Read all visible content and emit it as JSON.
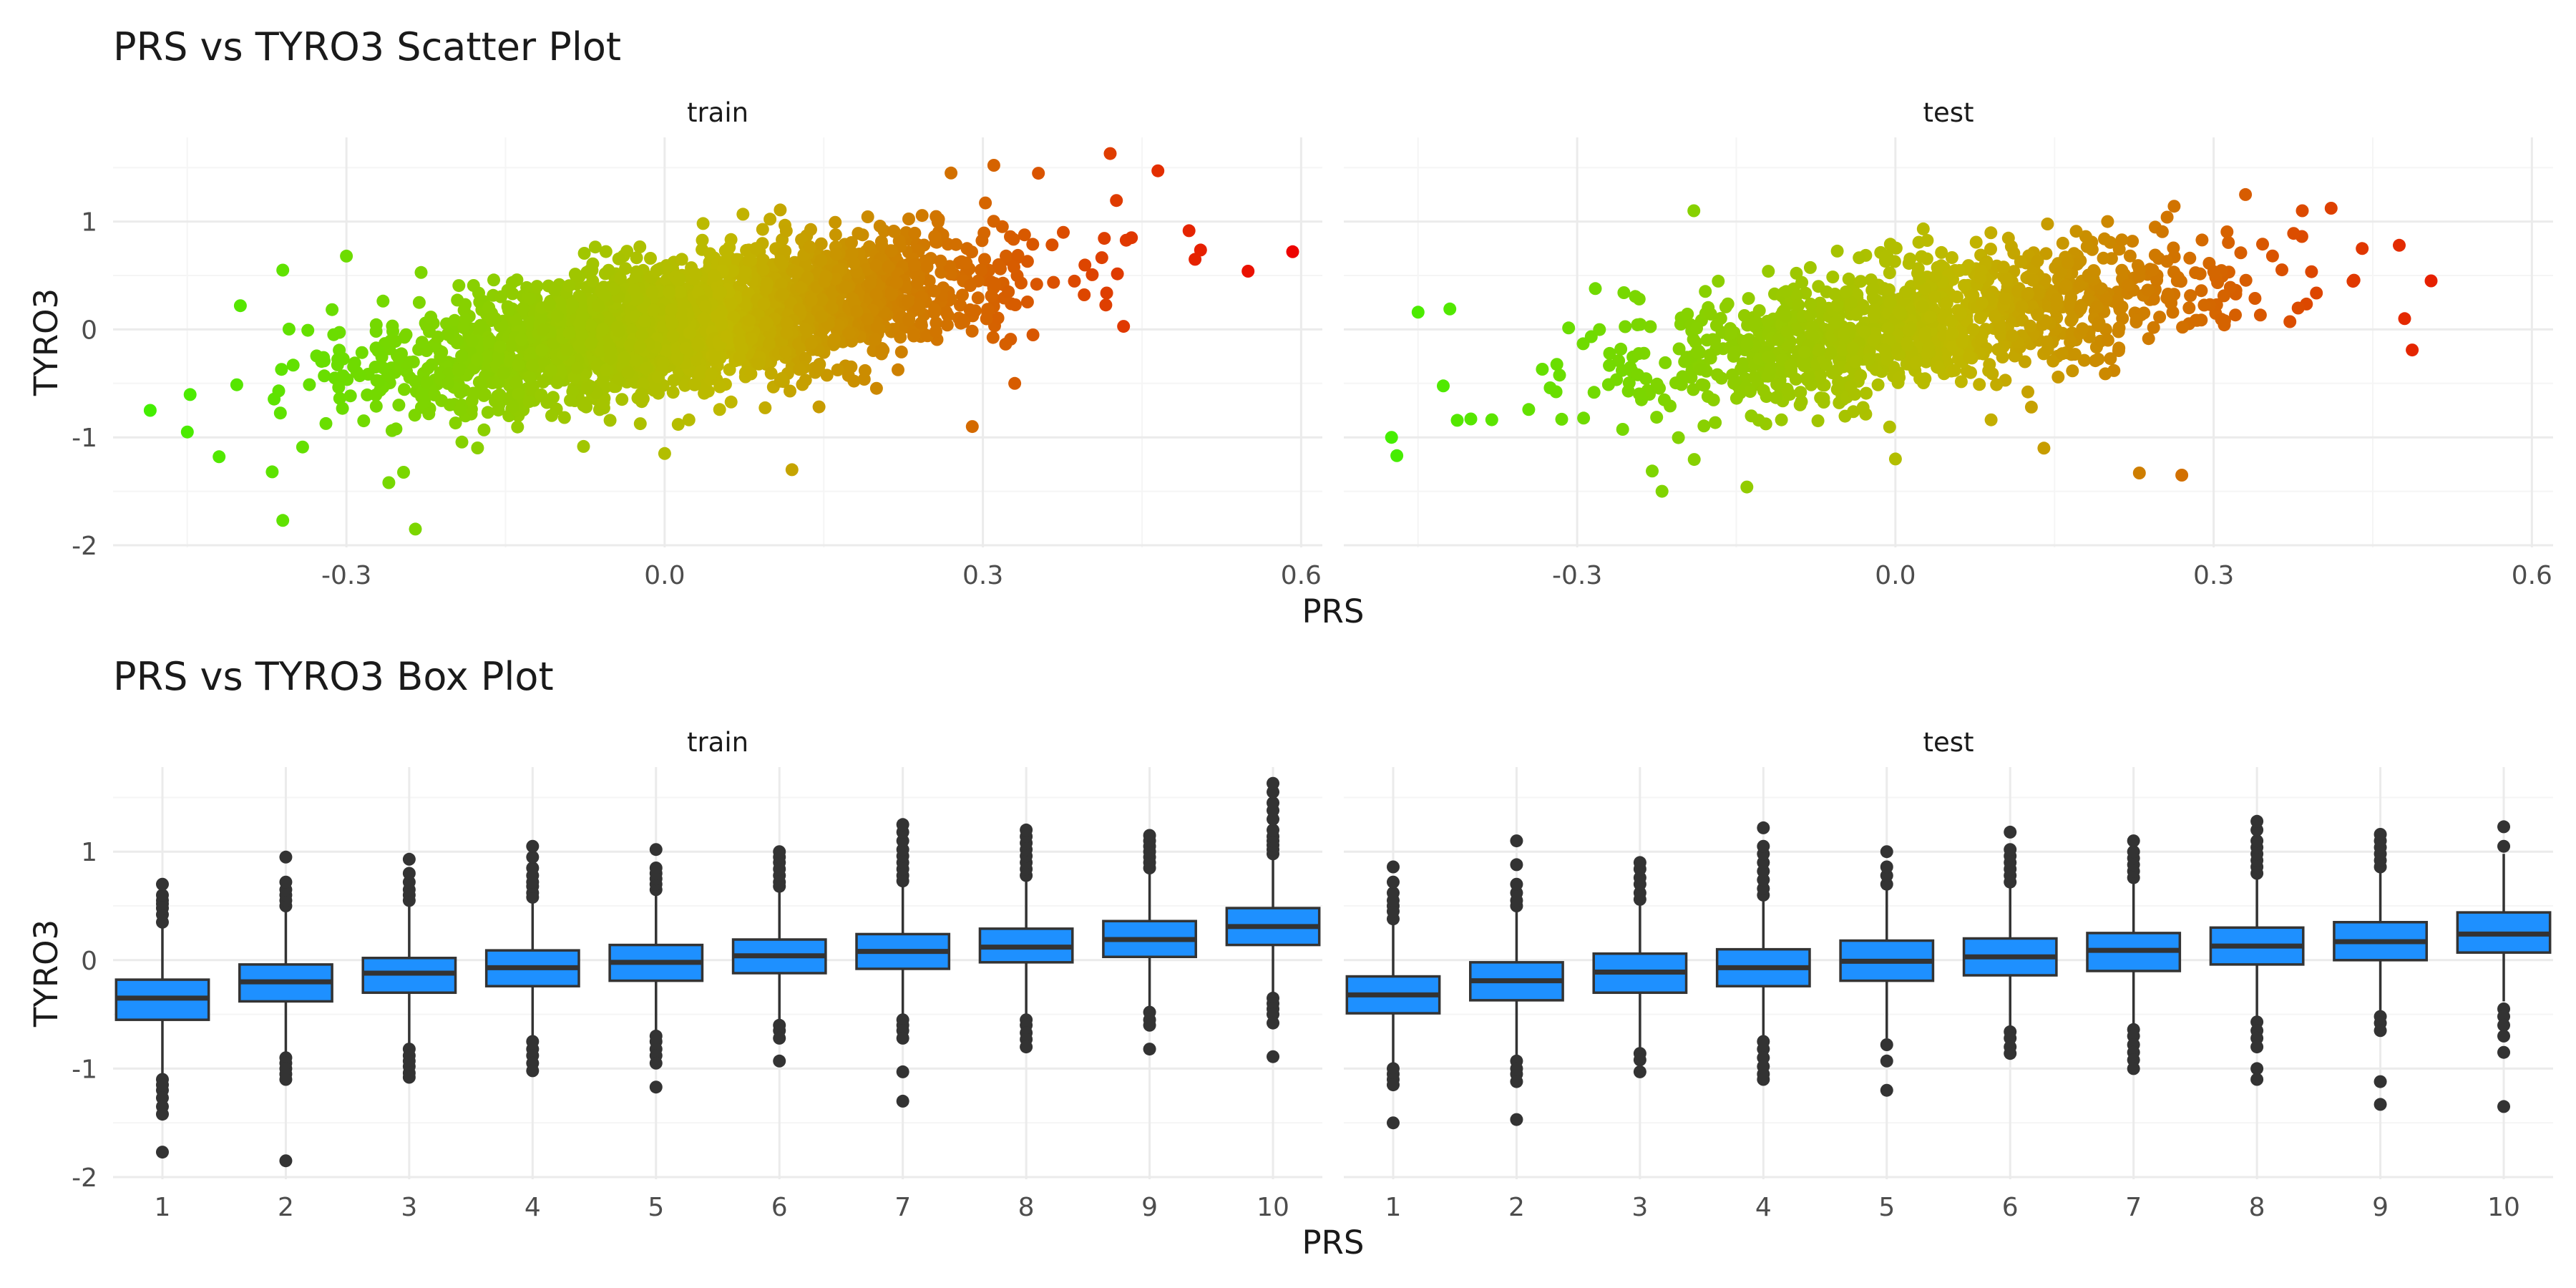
{
  "colors": {
    "grid_major": "#ebebeb",
    "grid_minor": "#f5f5f5",
    "box_fill": "#1e90ff",
    "box_stroke": "#333333",
    "point_low": "#44ee00",
    "point_mid": "#c0b800",
    "point_high": "#ee0000"
  },
  "chart_data": [
    {
      "type": "scatter",
      "title": "PRS vs TYRO3 Scatter Plot",
      "xlabel": "PRS",
      "ylabel": "TYRO3",
      "xlim": [
        -0.52,
        0.62
      ],
      "ylim": [
        -2.02,
        1.78
      ],
      "x_ticks": [
        -0.3,
        0.0,
        0.3,
        0.6
      ],
      "x_tick_labels": [
        "-0.3",
        "0.0",
        "0.3",
        "0.6"
      ],
      "y_ticks": [
        -2,
        -1,
        0,
        1
      ],
      "y_tick_labels": [
        "-2",
        "-1",
        "0",
        "1"
      ],
      "color_scale": "gradient by PRS: green (low) to red (high)",
      "grid": true,
      "legend": "none",
      "series": [
        {
          "name": "train",
          "trend": {
            "slope": 1.5,
            "intercept": 0.02,
            "residual_sd": 0.3
          },
          "x_range": [
            -0.46,
            0.52
          ],
          "n_points": 2600,
          "outliers": [
            {
              "x": 0.592,
              "y": 0.72
            },
            {
              "x": 0.55,
              "y": 0.54
            },
            {
              "x": 0.42,
              "y": 1.63
            },
            {
              "x": 0.465,
              "y": 1.47
            },
            {
              "x": 0.5,
              "y": 0.65
            },
            {
              "x": 0.44,
              "y": 0.85
            },
            {
              "x": -0.485,
              "y": -0.75
            },
            {
              "x": -0.45,
              "y": -0.95
            },
            {
              "x": -0.42,
              "y": -1.18
            },
            {
              "x": -0.37,
              "y": -1.32
            },
            {
              "x": -0.36,
              "y": 0.55
            },
            {
              "x": -0.3,
              "y": 0.68
            },
            {
              "x": -0.36,
              "y": -1.77
            },
            {
              "x": -0.235,
              "y": -1.85
            },
            {
              "x": -0.26,
              "y": -1.42
            },
            {
              "x": 0.12,
              "y": -1.3
            },
            {
              "x": 0.29,
              "y": -0.9
            },
            {
              "x": 0.27,
              "y": 1.45
            },
            {
              "x": -0.4,
              "y": 0.22
            },
            {
              "x": 0.0,
              "y": -1.15
            },
            {
              "x": 0.33,
              "y": -0.5
            }
          ]
        },
        {
          "name": "test",
          "trend": {
            "slope": 1.45,
            "intercept": 0.02,
            "residual_sd": 0.3
          },
          "x_range": [
            -0.45,
            0.5
          ],
          "n_points": 1200,
          "outliers": [
            {
              "x": 0.505,
              "y": 0.45
            },
            {
              "x": 0.475,
              "y": 0.78
            },
            {
              "x": 0.44,
              "y": 0.75
            },
            {
              "x": 0.48,
              "y": 0.1
            },
            {
              "x": -0.475,
              "y": -1.0
            },
            {
              "x": -0.47,
              "y": -1.17
            },
            {
              "x": -0.45,
              "y": 0.16
            },
            {
              "x": -0.42,
              "y": 0.19
            },
            {
              "x": -0.22,
              "y": -1.5
            },
            {
              "x": -0.14,
              "y": -1.46
            },
            {
              "x": -0.19,
              "y": 1.1
            },
            {
              "x": 0.0,
              "y": -1.2
            },
            {
              "x": 0.27,
              "y": -1.35
            },
            {
              "x": 0.23,
              "y": -1.33
            },
            {
              "x": 0.33,
              "y": 1.25
            },
            {
              "x": 0.2,
              "y": 1.0
            },
            {
              "x": 0.14,
              "y": -1.1
            }
          ]
        }
      ]
    },
    {
      "type": "box",
      "title": "PRS vs TYRO3 Box Plot",
      "xlabel": "PRS",
      "ylabel": "TYRO3",
      "categories": [
        "1",
        "2",
        "3",
        "4",
        "5",
        "6",
        "7",
        "8",
        "9",
        "10"
      ],
      "ylim": [
        -2.02,
        1.78
      ],
      "y_ticks": [
        -2,
        -1,
        0,
        1
      ],
      "y_tick_labels": [
        "-2",
        "-1",
        "0",
        "1"
      ],
      "grid": true,
      "legend": "none",
      "series": [
        {
          "name": "train",
          "boxes": [
            {
              "q1": -0.55,
              "median": -0.35,
              "q3": -0.18,
              "whisker_low": -1.05,
              "whisker_high": 0.3,
              "outliers": [
                0.35,
                0.42,
                0.48,
                0.52,
                0.55,
                0.6,
                0.7,
                -1.1,
                -1.15,
                -1.2,
                -1.27,
                -1.35,
                -1.42,
                -1.77
              ]
            },
            {
              "q1": -0.38,
              "median": -0.2,
              "q3": -0.04,
              "whisker_low": -0.88,
              "whisker_high": 0.45,
              "outliers": [
                0.5,
                0.55,
                0.6,
                0.65,
                0.72,
                0.95,
                -0.9,
                -0.95,
                -1.0,
                -1.05,
                -1.1,
                -1.85
              ]
            },
            {
              "q1": -0.3,
              "median": -0.12,
              "q3": 0.02,
              "whisker_low": -0.78,
              "whisker_high": 0.52,
              "outliers": [
                0.55,
                0.6,
                0.65,
                0.72,
                0.8,
                0.93,
                -0.82,
                -0.88,
                -0.93,
                -0.98,
                -1.04,
                -1.08
              ]
            },
            {
              "q1": -0.24,
              "median": -0.07,
              "q3": 0.09,
              "whisker_low": -0.72,
              "whisker_high": 0.55,
              "outliers": [
                0.58,
                0.62,
                0.68,
                0.72,
                0.78,
                0.85,
                0.95,
                1.05,
                -0.75,
                -0.82,
                -0.88,
                -0.95,
                -1.02
              ]
            },
            {
              "q1": -0.19,
              "median": -0.02,
              "q3": 0.14,
              "whisker_low": -0.65,
              "whisker_high": 0.62,
              "outliers": [
                0.65,
                0.7,
                0.75,
                0.8,
                0.85,
                1.02,
                -0.7,
                -0.75,
                -0.82,
                -0.88,
                -0.95,
                -1.17
              ]
            },
            {
              "q1": -0.12,
              "median": 0.04,
              "q3": 0.19,
              "whisker_low": -0.58,
              "whisker_high": 0.65,
              "outliers": [
                0.68,
                0.72,
                0.78,
                0.84,
                0.9,
                0.95,
                1.0,
                -0.6,
                -0.65,
                -0.72,
                -0.93
              ]
            },
            {
              "q1": -0.08,
              "median": 0.08,
              "q3": 0.24,
              "whisker_low": -0.52,
              "whisker_high": 0.7,
              "outliers": [
                0.73,
                0.78,
                0.84,
                0.9,
                0.96,
                1.02,
                1.1,
                1.18,
                1.25,
                -0.55,
                -0.6,
                -0.65,
                -0.72,
                -1.03,
                -1.3
              ]
            },
            {
              "q1": -0.02,
              "median": 0.12,
              "q3": 0.29,
              "whisker_low": -0.5,
              "whisker_high": 0.75,
              "outliers": [
                0.78,
                0.84,
                0.9,
                0.96,
                1.02,
                1.08,
                1.14,
                1.2,
                -0.55,
                -0.6,
                -0.67,
                -0.73,
                -0.8
              ]
            },
            {
              "q1": 0.03,
              "median": 0.19,
              "q3": 0.36,
              "whisker_low": -0.45,
              "whisker_high": 0.82,
              "outliers": [
                0.85,
                0.9,
                0.95,
                1.0,
                1.05,
                1.1,
                1.15,
                -0.48,
                -0.55,
                -0.6,
                -0.82
              ]
            },
            {
              "q1": 0.14,
              "median": 0.31,
              "q3": 0.48,
              "whisker_low": -0.3,
              "whisker_high": 0.95,
              "outliers": [
                0.98,
                1.02,
                1.06,
                1.1,
                1.14,
                1.2,
                1.3,
                1.38,
                1.45,
                1.55,
                1.63,
                -0.35,
                -0.4,
                -0.45,
                -0.5,
                -0.58,
                -0.89
              ]
            }
          ]
        },
        {
          "name": "test",
          "boxes": [
            {
              "q1": -0.49,
              "median": -0.32,
              "q3": -0.15,
              "whisker_low": -0.98,
              "whisker_high": 0.33,
              "outliers": [
                0.38,
                0.45,
                0.5,
                0.55,
                0.62,
                0.72,
                0.86,
                -1.0,
                -1.05,
                -1.1,
                -1.15,
                -1.5
              ]
            },
            {
              "q1": -0.37,
              "median": -0.19,
              "q3": -0.02,
              "whisker_low": -0.88,
              "whisker_high": 0.45,
              "outliers": [
                0.5,
                0.55,
                0.62,
                0.7,
                0.88,
                1.1,
                -0.93,
                -1.0,
                -1.05,
                -1.12,
                -1.47
              ]
            },
            {
              "q1": -0.3,
              "median": -0.11,
              "q3": 0.06,
              "whisker_low": -0.82,
              "whisker_high": 0.52,
              "outliers": [
                0.56,
                0.62,
                0.7,
                0.76,
                0.84,
                0.9,
                -0.86,
                -0.92,
                -1.03
              ]
            },
            {
              "q1": -0.24,
              "median": -0.07,
              "q3": 0.1,
              "whisker_low": -0.72,
              "whisker_high": 0.55,
              "outliers": [
                0.6,
                0.66,
                0.74,
                0.82,
                0.9,
                0.98,
                1.05,
                1.22,
                -0.75,
                -0.82,
                -0.9,
                -0.98,
                -1.05,
                -1.1
              ]
            },
            {
              "q1": -0.19,
              "median": -0.01,
              "q3": 0.18,
              "whisker_low": -0.72,
              "whisker_high": 0.65,
              "outliers": [
                0.7,
                0.78,
                0.86,
                1.0,
                -0.78,
                -0.93,
                -1.2
              ]
            },
            {
              "q1": -0.14,
              "median": 0.03,
              "q3": 0.2,
              "whisker_low": -0.62,
              "whisker_high": 0.68,
              "outliers": [
                0.72,
                0.78,
                0.84,
                0.9,
                0.96,
                1.02,
                1.18,
                -0.66,
                -0.72,
                -0.8,
                -0.86
              ]
            },
            {
              "q1": -0.1,
              "median": 0.09,
              "q3": 0.25,
              "whisker_low": -0.6,
              "whisker_high": 0.72,
              "outliers": [
                0.76,
                0.82,
                0.88,
                0.94,
                1.0,
                1.1,
                -0.64,
                -0.7,
                -0.78,
                -0.85,
                -0.92,
                -1.0
              ]
            },
            {
              "q1": -0.04,
              "median": 0.13,
              "q3": 0.3,
              "whisker_low": -0.52,
              "whisker_high": 0.76,
              "outliers": [
                0.8,
                0.86,
                0.92,
                0.98,
                1.04,
                1.1,
                1.2,
                1.28,
                -0.57,
                -0.65,
                -0.72,
                -0.8,
                -1.0,
                -1.1
              ]
            },
            {
              "q1": 0.0,
              "median": 0.17,
              "q3": 0.35,
              "whisker_low": -0.48,
              "whisker_high": 0.82,
              "outliers": [
                0.86,
                0.92,
                0.98,
                1.04,
                1.1,
                1.16,
                -0.52,
                -0.58,
                -0.65,
                -1.12,
                -1.33
              ]
            },
            {
              "q1": 0.07,
              "median": 0.24,
              "q3": 0.44,
              "whisker_low": -0.38,
              "whisker_high": 0.98,
              "outliers": [
                1.05,
                1.23,
                -0.45,
                -0.52,
                -0.6,
                -0.7,
                -0.85,
                -1.35
              ]
            }
          ]
        }
      ]
    }
  ]
}
